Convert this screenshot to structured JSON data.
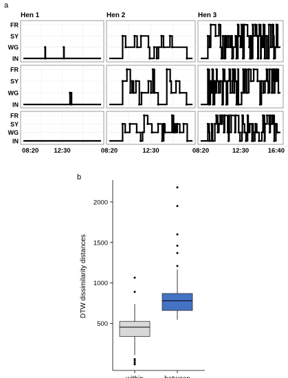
{
  "panel_a": {
    "label": "a",
    "columns": [
      "Hen 1",
      "Hen 2",
      "Hen 3"
    ],
    "y_levels": [
      "FR",
      "SY",
      "WG",
      "IN"
    ],
    "x_ticks": [
      "08:20",
      "12:30",
      "16:40"
    ]
  },
  "panel_b": {
    "label": "b"
  },
  "chart_data": [
    {
      "type": "line",
      "title": "",
      "grid": "3x3 step plots, rows = repetitions, columns = hens",
      "y_categories": [
        "IN",
        "WG",
        "SY",
        "FR"
      ],
      "x_ticks": [
        "08:20",
        "12:30",
        "16:40"
      ],
      "series": [
        {
          "name": "Hen 1",
          "row": 1,
          "steps": [
            [
              "08:20",
              "IN"
            ],
            [
              "10:40",
              "WG"
            ],
            [
              "10:42",
              "IN"
            ],
            [
              "12:40",
              "WG"
            ],
            [
              "12:42",
              "IN"
            ],
            [
              "16:40",
              "IN"
            ]
          ]
        },
        {
          "name": "Hen 1",
          "row": 2,
          "steps": [
            [
              "08:20",
              "IN"
            ],
            [
              "13:20",
              "WG"
            ],
            [
              "13:30",
              "IN"
            ],
            [
              "16:40",
              "IN"
            ]
          ]
        },
        {
          "name": "Hen 1",
          "row": 3,
          "steps": [
            [
              "08:20",
              "IN"
            ],
            [
              "16:40",
              "IN"
            ]
          ]
        },
        {
          "name": "Hen 2",
          "row": 1,
          "activity": "moderate"
        },
        {
          "name": "Hen 2",
          "row": 2,
          "activity": "moderate"
        },
        {
          "name": "Hen 2",
          "row": 3,
          "activity": "moderate"
        },
        {
          "name": "Hen 3",
          "row": 1,
          "activity": "high"
        },
        {
          "name": "Hen 3",
          "row": 2,
          "activity": "high"
        },
        {
          "name": "Hen 3",
          "row": 3,
          "activity": "high"
        }
      ]
    },
    {
      "type": "box",
      "title": "",
      "ylabel": "DTW dissimilarity distances",
      "ylim": [
        -80,
        2270
      ],
      "yticks": [
        500,
        1000,
        1500,
        2000
      ],
      "categories": [
        "within",
        "between"
      ],
      "boxes": [
        {
          "name": "within",
          "color": "#d9d9d9",
          "whisker_low": 110,
          "q1": 340,
          "median": 455,
          "q3": 525,
          "whisker_high": 740,
          "outliers": [
            890,
            1065,
            60,
            40,
            15,
            -5
          ]
        },
        {
          "name": "between",
          "color": "#4472c4",
          "whisker_low": 545,
          "q1": 660,
          "median": 780,
          "q3": 870,
          "whisker_high": 1165,
          "outliers": [
            1210,
            1370,
            1460,
            1600,
            1950,
            2180
          ]
        }
      ]
    }
  ]
}
